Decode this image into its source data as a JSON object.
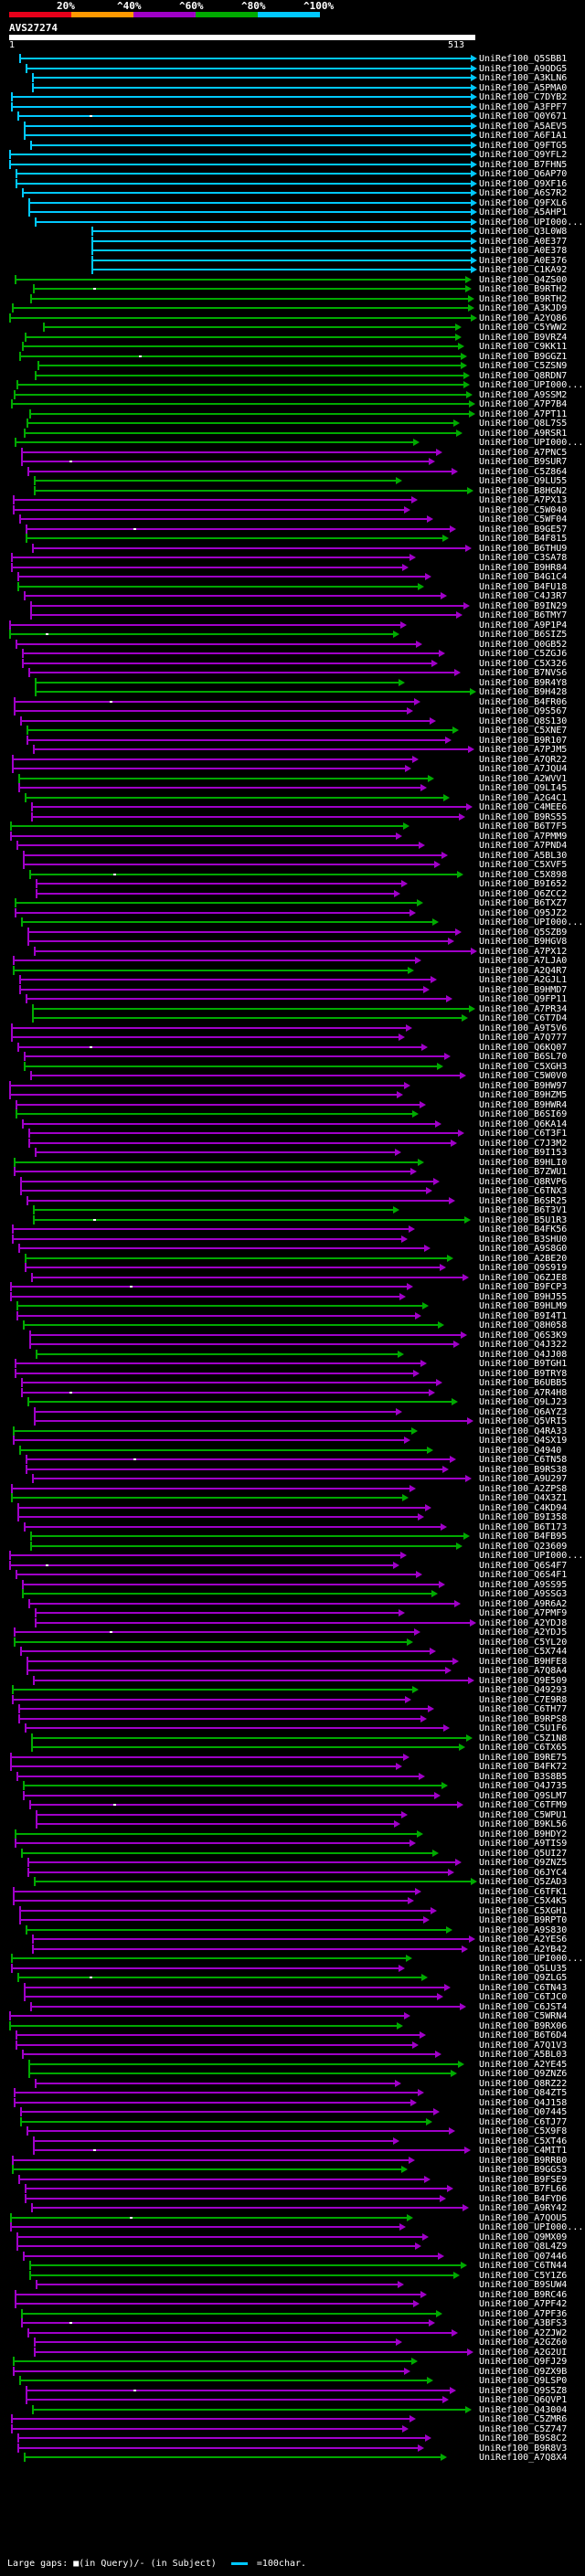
{
  "legend": {
    "labels": [
      "20%",
      "^40%",
      "^60%",
      "^80%",
      "^100%"
    ],
    "colors": [
      "#e8001a",
      "#ff9900",
      "#a000c8",
      "#00aa00",
      "#00c8ff"
    ]
  },
  "query": {
    "title": "AVS27274",
    "start": "1",
    "end": "513"
  },
  "alignment_ids": [
    "UniRef100_Q5SBB1",
    "UniRef100_A9QDG5",
    "UniRef100_A3KLN6",
    "UniRef100_A5PMA0",
    "UniRef100_C7DYB2",
    "UniRef100_A3FPF7",
    "UniRef100_Q0Y671",
    "UniRef100_A5AEV5",
    "UniRef100_A6F1A1",
    "UniRef100_Q9FTG5",
    "UniRef100_Q9YFL2",
    "UniRef100_B7FHN5",
    "UniRef100_Q6AP70",
    "UniRef100_Q9XF16",
    "UniRef100_A6S7R2",
    "UniRef100_Q9FXL6",
    "UniRef100_A5AHP1",
    "UniRef100_UPI000...",
    "UniRef100_Q3L0W8",
    "UniRef100_A0E377",
    "UniRef100_A0E378",
    "UniRef100_A0E376",
    "UniRef100_C1KA92",
    "UniRef100_Q4ZS00",
    "UniRef100_B9RTH2",
    "UniRef100_B9RTH2",
    "UniRef100_A3KJD9",
    "UniRef100_A2YQ86",
    "UniRef100_C5YWW2",
    "UniRef100_B9VRZ4",
    "UniRef100_C9KK11",
    "UniRef100_B9GGZ1",
    "UniRef100_C5ZSN9",
    "UniRef100_Q8RDN7",
    "UniRef100_UPI000...",
    "UniRef100_A9SSM2",
    "UniRef100_A7P7B4",
    "UniRef100_A7PT11",
    "UniRef100_Q8L7S5",
    "UniRef100_A9RSR1",
    "UniRef100_UPI000...",
    "UniRef100_A7PNC5",
    "UniRef100_B9SUR7",
    "UniRef100_C5Z864",
    "UniRef100_Q9LU55",
    "UniRef100_B8HGN2",
    "UniRef100_A7PX13",
    "UniRef100_C5W040",
    "UniRef100_C5WF04",
    "UniRef100_B9GE57",
    "UniRef100_B4F815",
    "UniRef100_B6THU9",
    "UniRef100_C3SA78",
    "UniRef100_B9HR84",
    "UniRef100_B4G1C4",
    "UniRef100_B4FU18",
    "UniRef100_C4J3R7",
    "UniRef100_B9IN29",
    "UniRef100_B6TMY7",
    "UniRef100_A9P1P4",
    "UniRef100_B6SIZ5",
    "UniRef100_Q0GB52",
    "UniRef100_C5ZGJ6",
    "UniRef100_C5X326",
    "UniRef100_B7NVS6",
    "UniRef100_B9R4Y8",
    "UniRef100_B9H428",
    "UniRef100_B4FR06",
    "UniRef100_Q9S567",
    "UniRef100_Q8S130",
    "UniRef100_C5XNE7",
    "UniRef100_B9R107",
    "UniRef100_A7PJM5",
    "UniRef100_A7QR22",
    "UniRef100_A7JQU4",
    "UniRef100_A2WVV1",
    "UniRef100_Q9LI45",
    "UniRef100_A2G4C1",
    "UniRef100_C4MEE6",
    "UniRef100_B9RS55",
    "UniRef100_B6T7F5",
    "UniRef100_A7PMM9",
    "UniRef100_A7PND4",
    "UniRef100_A5BL30",
    "UniRef100_C5XVF5",
    "UniRef100_C5X898",
    "UniRef100_B9I652",
    "UniRef100_Q6ZCC2",
    "UniRef100_B6TXZ7",
    "UniRef100_Q95JZ2",
    "UniRef100_UPI000...",
    "UniRef100_Q5SZB9",
    "UniRef100_B9HGV8",
    "UniRef100_A7PX12",
    "UniRef100_A7LJA0",
    "UniRef100_A2Q4R7",
    "UniRef100_A2GJL1",
    "UniRef100_B9HMD7",
    "UniRef100_Q9FP11",
    "UniRef100_A7PR34",
    "UniRef100_C6T7D4",
    "UniRef100_A9T5V6",
    "UniRef100_A7Q777",
    "UniRef100_Q6KQ07",
    "UniRef100_B6SL70",
    "UniRef100_C5XGH3",
    "UniRef100_C5W0V0",
    "UniRef100_B9HW97",
    "UniRef100_B9HZM5",
    "UniRef100_B9HWR4",
    "UniRef100_B6SI69",
    "UniRef100_Q6KA14",
    "UniRef100_C6T3F1",
    "UniRef100_C7J3M2",
    "UniRef100_B9I153",
    "UniRef100_B9HLI0",
    "UniRef100_B7ZWU1",
    "UniRef100_Q8RVP6",
    "UniRef100_C6TNX3",
    "UniRef100_B6SR25",
    "UniRef100_B6T3V1",
    "UniRef100_B5U1R3",
    "UniRef100_B4FK56",
    "UniRef100_B3SHU0",
    "UniRef100_A9S8G0",
    "UniRef100_A2BE20",
    "UniRef100_Q9S919",
    "UniRef100_Q6ZJE8",
    "UniRef100_B9FCP3",
    "UniRef100_B9HJ55",
    "UniRef100_B9HLM9",
    "UniRef100_B9I4T1",
    "UniRef100_Q8H058",
    "UniRef100_Q6S3K9",
    "UniRef100_Q4J322",
    "UniRef100_Q4JJ08",
    "UniRef100_B9TGH1",
    "UniRef100_B9TRY8",
    "UniRef100_B6UBB5",
    "UniRef100_A7R4H8",
    "UniRef100_Q9LJ23",
    "UniRef100_Q6AYZ3",
    "UniRef100_Q5VRI5",
    "UniRef100_Q4RA33",
    "UniRef100_Q4SX19",
    "UniRef100_Q4940",
    "UniRef100_C6TN58",
    "UniRef100_B9RS38",
    "UniRef100_A9U297",
    "UniRef100_A2ZPS8",
    "UniRef100_Q4X3Z1",
    "UniRef100_C4KD94",
    "UniRef100_B9I358",
    "UniRef100_B6T173",
    "UniRef100_B4FB95",
    "UniRef100_Q23609",
    "UniRef100_UPI000...",
    "UniRef100_Q6S4F7",
    "UniRef100_Q6S4F1",
    "UniRef100_A9SS95",
    "UniRef100_A9SSG3",
    "UniRef100_A9R6A2",
    "UniRef100_A7PMF9",
    "UniRef100_A2YDJ8",
    "UniRef100_A2YDJ5",
    "UniRef100_C5YL20",
    "UniRef100_C5X744",
    "UniRef100_B9HFE8",
    "UniRef100_A7Q8A4",
    "UniRef100_Q9E509",
    "UniRef100_Q49293",
    "UniRef100_C7E9R8",
    "UniRef100_C6TH77",
    "UniRef100_B9RPS8",
    "UniRef100_C5U1F6",
    "UniRef100_C5Z1N8",
    "UniRef100_C6TX65",
    "UniRef100_B9RE75",
    "UniRef100_B4FK72",
    "UniRef100_B3S8B5",
    "UniRef100_Q4J735",
    "UniRef100_Q9SLM7",
    "UniRef100_C6TFM9",
    "UniRef100_C5WPU1",
    "UniRef100_B9KL56",
    "UniRef100_B9HDY2",
    "UniRef100_A9TIS9",
    "UniRef100_Q5UI27",
    "UniRef100_Q9ZNZ5",
    "UniRef100_Q6JYC4",
    "UniRef100_Q5ZAD3",
    "UniRef100_C6TFK1",
    "UniRef100_C5X4K5",
    "UniRef100_C5XGH1",
    "UniRef100_B9RPT0",
    "UniRef100_A9S830",
    "UniRef100_A2YES6",
    "UniRef100_A2YB42",
    "UniRef100_UPI000...",
    "UniRef100_Q5LU35",
    "UniRef100_Q9ZLG5",
    "UniRef100_C6TN43",
    "UniRef100_C6TJC0",
    "UniRef100_C6JST4",
    "UniRef100_C5WRN4",
    "UniRef100_B9RX06",
    "UniRef100_B6T6D4",
    "UniRef100_A7Q1V3",
    "UniRef100_A5BL03",
    "UniRef100_A2YE45",
    "UniRef100_Q9ZNZ6",
    "UniRef100_Q8RZ22",
    "UniRef100_Q84ZT5",
    "UniRef100_Q4J158",
    "UniRef100_Q07445",
    "UniRef100_C6TJ77",
    "UniRef100_C5X9F8",
    "UniRef100_C5XT46",
    "UniRef100_C4MIT1",
    "UniRef100_B9RRB0",
    "UniRef100_B9GGS3",
    "UniRef100_B9FSE9",
    "UniRef100_B7FL66",
    "UniRef100_B4FYD6",
    "UniRef100_A9RY42",
    "UniRef100_A7QOU5",
    "UniRef100_UPI000...",
    "UniRef100_Q9MX09",
    "UniRef100_Q8L4Z9",
    "UniRef100_Q07446",
    "UniRef100_C6TN44",
    "UniRef100_C5Y1Z6",
    "UniRef100_B9SUW4",
    "UniRef100_B9RC46",
    "UniRef100_A7PF42",
    "UniRef100_A7PF36",
    "UniRef100_A3BFS3",
    "UniRef100_A2ZJW2",
    "UniRef100_A2GZ60",
    "UniRef100_A2G2UI",
    "UniRef100_Q9FJ29",
    "UniRef100_Q9ZX9B",
    "UniRef100_Q9LSP0",
    "UniRef100_Q9S5Z8",
    "UniRef100_Q6QVP1",
    "UniRef100_Q43004",
    "UniRef100_C5ZMR6",
    "UniRef100_C5Z747",
    "UniRef100_B9S8C2",
    "UniRef100_B9R8V3",
    "UniRef100_A7Q8X4"
  ],
  "footer": {
    "text": "Large gaps: ■(in Query)/- (in Subject)",
    "scale": "=100char."
  }
}
